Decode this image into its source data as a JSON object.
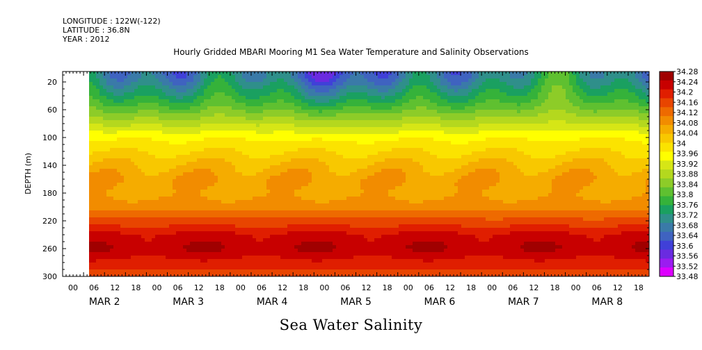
{
  "header": {
    "longitude": "LONGITUDE : 122W(-122)",
    "latitude": "LATITUDE : 36.8N",
    "year": "YEAR : 2012"
  },
  "chart_data": {
    "type": "heatmap",
    "title": "Hourly Gridded MBARI Mooring M1 Sea Water Temperature and Salinity Observations",
    "variable_title": "Sea Water Salinity",
    "ylabel": "DEPTH (m)",
    "y_ticks": [
      "20",
      "60",
      "100",
      "140",
      "180",
      "220",
      "260",
      "300"
    ],
    "y_range": [
      5,
      300
    ],
    "y_reversed": true,
    "x_hour_ticks": [
      "00",
      "06",
      "12",
      "18",
      "00",
      "06",
      "12",
      "18",
      "00",
      "06",
      "12",
      "18",
      "00",
      "06",
      "12",
      "18",
      "00",
      "06",
      "12",
      "18",
      "00",
      "06",
      "12",
      "18",
      "00",
      "06",
      "12",
      "18"
    ],
    "x_date_labels": [
      "MAR 2",
      "MAR 3",
      "MAR 4",
      "MAR 5",
      "MAR 6",
      "MAR 7",
      "MAR 8"
    ],
    "data_start_hour": 6,
    "colorbar": {
      "labels": [
        "34.28",
        "34.24",
        "34.2",
        "34.16",
        "34.12",
        "34.08",
        "34.04",
        "34",
        "33.96",
        "33.92",
        "33.88",
        "33.84",
        "33.8",
        "33.76",
        "33.72",
        "33.68",
        "33.64",
        "33.6",
        "33.56",
        "33.52",
        "33.48"
      ],
      "min": 33.48,
      "max": 34.28,
      "colors": [
        "#dd00ff",
        "#9b1cf0",
        "#6a2be0",
        "#4040d8",
        "#3f63c0",
        "#3a7aa8",
        "#2f8f8a",
        "#1aa060",
        "#35b23a",
        "#5fc030",
        "#8dcc28",
        "#b4d81e",
        "#d6e616",
        "#ffff00",
        "#fbe300",
        "#f8c800",
        "#f5ac00",
        "#f28c00",
        "#ee6a00",
        "#e84500",
        "#e01e00",
        "#c80000",
        "#a00000"
      ]
    },
    "profile": {
      "depths": [
        10,
        20,
        30,
        45,
        60,
        80,
        100,
        120,
        140,
        160,
        180,
        200,
        220,
        240,
        260,
        280,
        300
      ],
      "values": [
        33.68,
        33.7,
        33.73,
        33.77,
        33.82,
        33.89,
        33.96,
        34.0,
        34.04,
        34.07,
        34.06,
        34.09,
        34.15,
        34.22,
        34.24,
        34.2,
        34.16
      ]
    }
  }
}
